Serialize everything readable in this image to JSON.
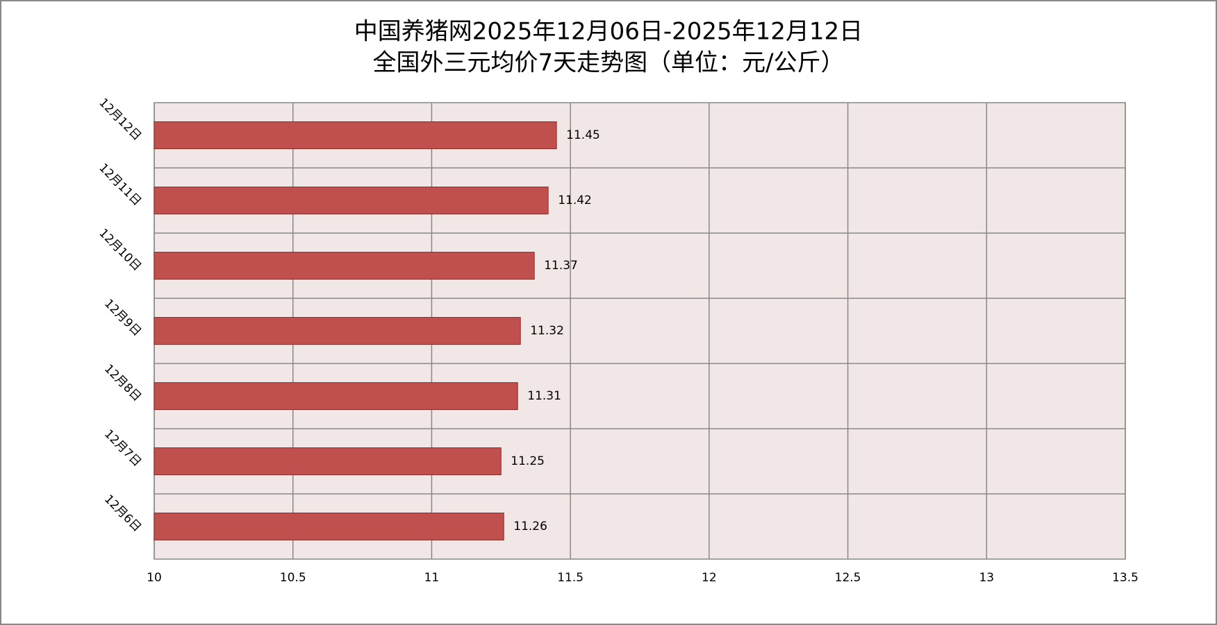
{
  "chart_data": {
    "type": "bar",
    "orientation": "horizontal",
    "title": "中国养猪网2025年12月06日-2025年12月12日",
    "subtitle": "全国外三元均价7天走势图（单位：元/公斤）",
    "categories": [
      "12月12日",
      "12月11日",
      "12月10日",
      "12月9日",
      "12月8日",
      "12月7日",
      "12月6日"
    ],
    "values": [
      11.45,
      11.42,
      11.37,
      11.32,
      11.31,
      11.25,
      11.26
    ],
    "color": "#c0504d",
    "xlim": [
      10,
      13.5
    ],
    "xticks": [
      10,
      10.5,
      11,
      11.5,
      12,
      12.5,
      13,
      13.5
    ],
    "grid": true
  }
}
